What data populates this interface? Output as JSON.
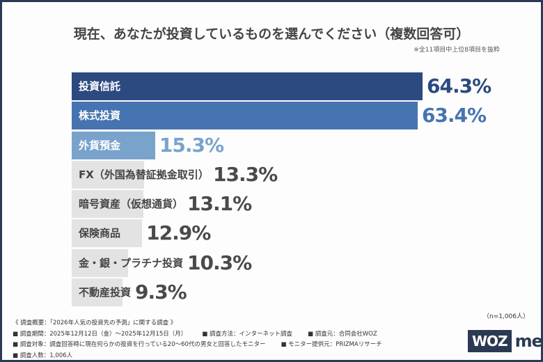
{
  "chart_data": {
    "type": "bar",
    "orientation": "horizontal",
    "title": "現在、あなたが投資しているものを選んでください（複数回答可）",
    "note": "※全11項目中上位8項目を抜粋",
    "categories": [
      "投資信託",
      "株式投資",
      "外貨預金",
      "FX（外国為替証拠金取引）",
      "暗号資産（仮想通貨）",
      "保険商品",
      "金・銀・プラチナ投資",
      "不動産投資"
    ],
    "values": [
      64.3,
      63.4,
      15.3,
      13.3,
      13.1,
      12.9,
      10.3,
      9.3
    ],
    "value_labels": [
      "64.3%",
      "63.4%",
      "15.3%",
      "13.3%",
      "13.1%",
      "12.9%",
      "10.3%",
      "9.3%"
    ],
    "bar_colors": [
      "#2c4a80",
      "#4674b0",
      "#7aa3cc",
      "#e3e3e3",
      "#e3e3e3",
      "#e3e3e3",
      "#e3e3e3",
      "#e3e3e3"
    ],
    "value_colors": [
      "#2c4a80",
      "#4674b0",
      "#7aa3cc",
      "#4a4a4a",
      "#4a4a4a",
      "#4a4a4a",
      "#4a4a4a",
      "#4a4a4a"
    ],
    "label_colors": [
      "#ffffff",
      "#ffffff",
      "#ffffff",
      "#444444",
      "#444444",
      "#444444",
      "#444444",
      "#444444"
    ],
    "unit": "%"
  },
  "sample_size": "（n=1,006人）",
  "footer": {
    "lines": [
      [
        "《 調査概要：「2026年人気の投資先の予測」に関する調査 》"
      ],
      [
        "■ 調査期間：2025年12月12日（金）～2025年12月15日（月）",
        "■ 調査方法：インターネット調査",
        "■ 調査元：合同会社WOZ"
      ],
      [
        "■ 調査対象：調査回答時に現在何らかの投資を行っている20～60代の男女と回答したモニター",
        "■ モニター提供元：PRIZMAリサーチ"
      ],
      [
        "■ 調査人数：1,006人"
      ]
    ]
  },
  "logo": {
    "box": "WOZ",
    "text": "media"
  }
}
